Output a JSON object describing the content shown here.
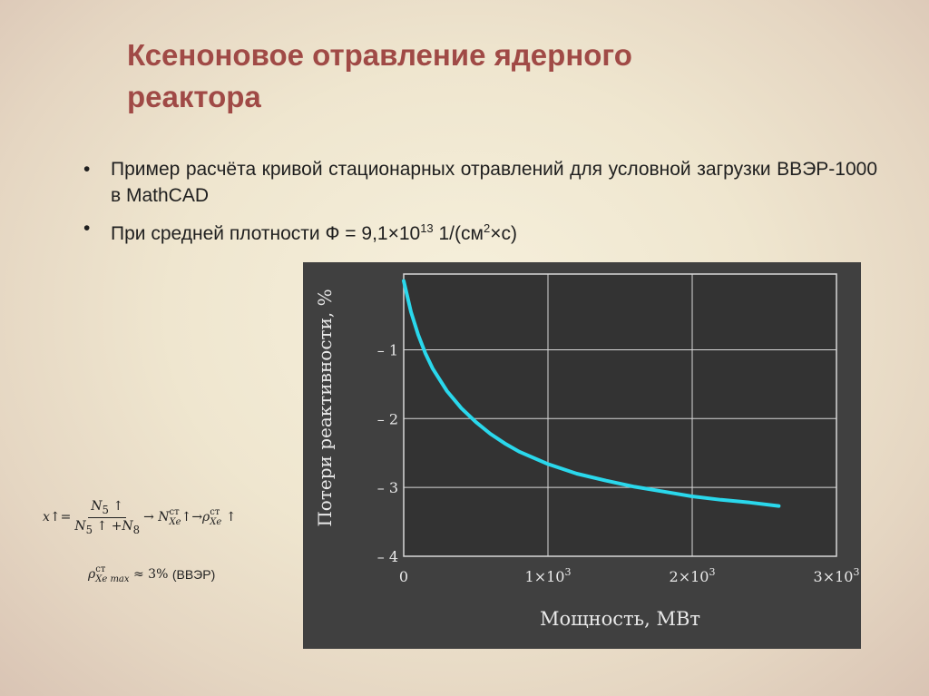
{
  "slide": {
    "title_line1": "Ксеноновое отравление ядерного",
    "title_line2": "реактора",
    "bullets": [
      {
        "text": "Пример расчёта кривой стационарных отравлений для условной загрузки ВВЭР-1000 в MathCAD"
      },
      {
        "text_before": "При средней плотности Ф = 9,1×10",
        "sup1": "13",
        "text_mid": " 1/(см",
        "sup2": "2",
        "text_after": "×с)"
      }
    ],
    "bullet_marker": "•"
  },
  "formula": {
    "x": "x",
    "arrow_up": "↑",
    "eq": "=",
    "num_N": "N",
    "num_sub": "5",
    "den_N5": "N",
    "den_sub5": "5",
    "den_plus": "+",
    "den_N8": "N",
    "den_sub8": "8",
    "to": "→",
    "NXe_N": "N",
    "sup_st": "ст",
    "sub_Xe": "Xe",
    "rho": "ρ",
    "line2_sub": "Xe max",
    "line2_approx": "≈ 3%",
    "line2_note": "(ВВЭР)"
  },
  "chart_data": {
    "type": "line",
    "xlabel": "Мощность, МВт",
    "ylabel": "Потери реактивности, %",
    "xlim": [
      0,
      3000
    ],
    "ylim": [
      -4,
      0.1
    ],
    "x_ticks": [
      0,
      1000,
      2000,
      3000
    ],
    "x_tick_labels": [
      {
        "base": "0",
        "exp": ""
      },
      {
        "base": "1×10",
        "exp": "3"
      },
      {
        "base": "2×10",
        "exp": "3"
      },
      {
        "base": "3×10",
        "exp": "3"
      }
    ],
    "y_ticks": [
      -1,
      -2,
      -3,
      -4
    ],
    "y_tick_labels": [
      "– 1",
      "– 2",
      "– 3",
      "– 4"
    ],
    "grid": true,
    "series_color": "#2ad8ec",
    "series": [
      {
        "x": [
          0,
          50,
          100,
          150,
          200,
          300,
          400,
          500,
          600,
          700,
          800,
          1000,
          1200,
          1400,
          1600,
          1800,
          2000,
          2200,
          2400,
          2600
        ],
        "y": [
          0,
          -0.45,
          -0.78,
          -1.05,
          -1.27,
          -1.6,
          -1.85,
          -2.05,
          -2.22,
          -2.36,
          -2.48,
          -2.66,
          -2.8,
          -2.9,
          -2.99,
          -3.06,
          -3.13,
          -3.18,
          -3.22,
          -3.27
        ]
      }
    ]
  }
}
